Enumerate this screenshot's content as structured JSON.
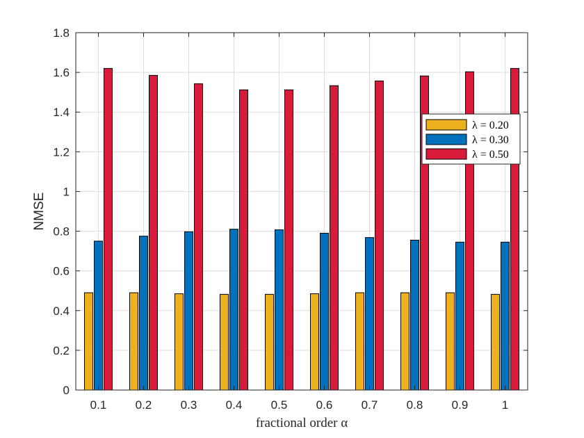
{
  "chart_data": {
    "type": "bar",
    "xlabel": "fractional order α",
    "ylabel": "NMSE",
    "ylim": [
      0,
      1.8
    ],
    "yticks": [
      "0",
      "0.2",
      "0.4",
      "0.6",
      "0.8",
      "1",
      "1.2",
      "1.4",
      "1.6",
      "1.8"
    ],
    "categories": [
      "0.1",
      "0.2",
      "0.3",
      "0.4",
      "0.5",
      "0.6",
      "0.7",
      "0.8",
      "0.9",
      "1"
    ],
    "grid": true,
    "legend_position": "right",
    "series": [
      {
        "name": "λ = 0.20",
        "color": "#EDB120",
        "values": [
          0.49,
          0.49,
          0.485,
          0.482,
          0.482,
          0.485,
          0.49,
          0.49,
          0.49,
          0.482
        ]
      },
      {
        "name": "λ = 0.30",
        "color": "#0072BD",
        "values": [
          0.75,
          0.775,
          0.797,
          0.81,
          0.807,
          0.79,
          0.768,
          0.755,
          0.745,
          0.745
        ]
      },
      {
        "name": "λ = 0.50",
        "color": "#D81B3A",
        "values": [
          1.62,
          1.585,
          1.543,
          1.512,
          1.512,
          1.533,
          1.557,
          1.582,
          1.603,
          1.62
        ]
      }
    ]
  }
}
